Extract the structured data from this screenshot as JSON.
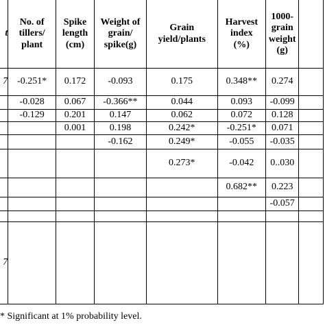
{
  "table": {
    "header": [
      "t",
      "No. of\ntillers/\nplant",
      "Spike\nlength\n(cm)",
      "Weight of\ngrain/\nspike(g)",
      "Grain\nyield/plants",
      "Harvest\nindex\n(%)",
      "1000-\ngrain\nweight\n(g)"
    ],
    "rows": [
      [
        "7",
        "-0.251*",
        "0.172",
        "-0.093",
        "0.175",
        "0.348**",
        "0.274"
      ],
      [
        null,
        "-0.028",
        "0.067",
        "-0.366**",
        "0.044",
        "0.093",
        "-0.099"
      ],
      [
        null,
        "-0.129",
        "0.201",
        "0.147",
        "0.062",
        "0.072",
        "0.128"
      ],
      [
        null,
        null,
        "0.001",
        "0.198",
        "0.242*",
        "-0.251*",
        "0.071"
      ],
      [
        null,
        null,
        null,
        "-0.162",
        "0.249*",
        "-0.055",
        "-0.035"
      ],
      [
        null,
        null,
        null,
        null,
        "0.273*",
        "-0.042",
        "0..030"
      ],
      [
        null,
        null,
        null,
        null,
        null,
        "0.682**",
        "0.223"
      ],
      [
        null,
        null,
        null,
        null,
        null,
        null,
        "-0.057"
      ],
      [
        null,
        null,
        null,
        null,
        null,
        null,
        null
      ],
      [
        "7",
        null,
        null,
        null,
        null,
        null,
        null
      ]
    ]
  },
  "footnote": "* Significant at 1% probability level."
}
